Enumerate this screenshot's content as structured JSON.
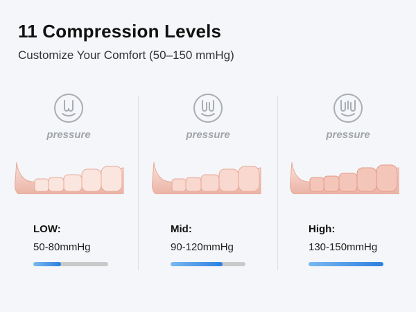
{
  "header": {
    "title": "11 Compression Levels",
    "subtitle": "Customize Your Comfort (50–150 mmHg)"
  },
  "levels": [
    {
      "icon": "pressure-icon-low",
      "pressure_label": "pressure",
      "name": "LOW:",
      "range": "50-80mmHg",
      "fill_fraction": 0.37
    },
    {
      "icon": "pressure-icon-mid",
      "pressure_label": "pressure",
      "name": "Mid:",
      "range": "90-120mmHg",
      "fill_fraction": 0.69
    },
    {
      "icon": "pressure-icon-high",
      "pressure_label": "pressure",
      "name": "High:",
      "range": "130-150mmHg",
      "fill_fraction": 1.0
    }
  ],
  "colors": {
    "background": "#f4f6f9",
    "bar_track": "#c9c9c9",
    "bar_fill_start": "#7ab8f0",
    "bar_fill_end": "#2b7fe0",
    "leg_fill": "#f3c9be",
    "leg_outline": "#e8a898"
  }
}
